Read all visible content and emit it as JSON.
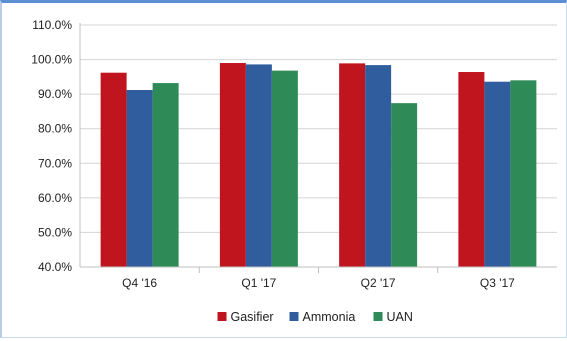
{
  "chart_data": {
    "type": "bar",
    "categories": [
      "Q4 '16",
      "Q1 '17",
      "Q2 '17",
      "Q3 '17"
    ],
    "series": [
      {
        "name": "Gasifier",
        "color": "#c0141e",
        "values": [
          96.2,
          99.0,
          98.9,
          96.4
        ]
      },
      {
        "name": "Ammonia",
        "color": "#2f5d9e",
        "values": [
          91.2,
          98.6,
          98.4,
          93.6
        ]
      },
      {
        "name": "UAN",
        "color": "#2e8b57",
        "values": [
          93.2,
          96.8,
          87.4,
          94.0
        ]
      }
    ],
    "y_ticks": [
      "40.0%",
      "50.0%",
      "60.0%",
      "70.0%",
      "80.0%",
      "90.0%",
      "100.0%",
      "110.0%"
    ],
    "ylim": [
      40,
      110
    ],
    "y_step": 10,
    "grid": true,
    "legend_position": "bottom",
    "title": "",
    "xlabel": "",
    "ylabel": ""
  }
}
